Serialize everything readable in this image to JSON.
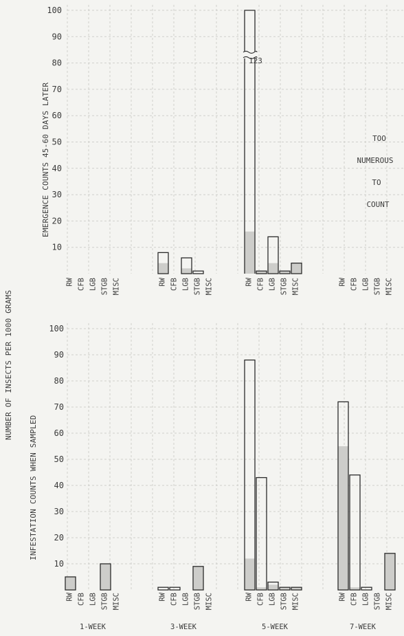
{
  "y_axis_label": "NUMBER OF INSECTS PER 1000 GRAMS",
  "too_numerous": [
    "TOO",
    "NUMEROUS",
    "TO",
    "COUNT"
  ],
  "broken_bar_label": "123",
  "colors": {
    "grid": "#cfcfcc",
    "bar_stroke": "#2b2b2b",
    "shaded": "#cdcdca",
    "background": "#f4f4f1"
  },
  "chart_data": [
    {
      "type": "bar",
      "title": "",
      "ylabel": "EMERGENCE COUNTS 45-60 DAYS LATER",
      "ylim": [
        0,
        100
      ],
      "yticks": [
        10,
        20,
        30,
        40,
        50,
        60,
        70,
        80,
        90,
        100
      ],
      "grid": true,
      "groups": [
        {
          "name": "1-WEEK",
          "categories": [
            "RW",
            "CFB",
            "LGB",
            "STGB",
            "MISC"
          ],
          "total": [
            0,
            0,
            0,
            0,
            0
          ],
          "shaded": [
            0,
            0,
            0,
            0,
            0
          ]
        },
        {
          "name": "3-WEEK",
          "categories": [
            "RW",
            "CFB",
            "LGB",
            "STGB",
            "MISC"
          ],
          "total": [
            8,
            0,
            6,
            1,
            0
          ],
          "shaded": [
            4,
            0,
            2,
            0,
            0
          ]
        },
        {
          "name": "5-WEEK",
          "categories": [
            "RW",
            "CFB",
            "LGB",
            "STGB",
            "MISC"
          ],
          "total": [
            123,
            1,
            14,
            1,
            4
          ],
          "shaded": [
            16,
            1,
            4,
            1,
            4
          ],
          "broken": [
            true,
            false,
            false,
            false,
            false
          ]
        },
        {
          "name": "7-WEEK",
          "categories": [
            "RW",
            "CFB",
            "LGB",
            "STGB",
            "MISC"
          ],
          "total": [
            null,
            null,
            null,
            null,
            null
          ],
          "shaded": [
            null,
            null,
            null,
            null,
            null
          ],
          "note": "TOO NUMEROUS TO COUNT"
        }
      ]
    },
    {
      "type": "bar",
      "title": "",
      "ylabel": "INFESTATION COUNTS WHEN SAMPLED",
      "ylim": [
        0,
        100
      ],
      "yticks": [
        10,
        20,
        30,
        40,
        50,
        60,
        70,
        80,
        90,
        100
      ],
      "grid": true,
      "groups": [
        {
          "name": "1-WEEK",
          "categories": [
            "RW",
            "CFB",
            "LGB",
            "STGB",
            "MISC"
          ],
          "total": [
            5,
            0,
            0,
            10,
            0
          ],
          "shaded": [
            5,
            0,
            0,
            10,
            0
          ]
        },
        {
          "name": "3-WEEK",
          "categories": [
            "RW",
            "CFB",
            "LGB",
            "STGB",
            "MISC"
          ],
          "total": [
            1,
            1,
            0,
            9,
            0
          ],
          "shaded": [
            0,
            0,
            0,
            9,
            0
          ]
        },
        {
          "name": "5-WEEK",
          "categories": [
            "RW",
            "CFB",
            "LGB",
            "STGB",
            "MISC"
          ],
          "total": [
            88,
            43,
            3,
            1,
            1
          ],
          "shaded": [
            12,
            1,
            2,
            1,
            1
          ]
        },
        {
          "name": "7-WEEK",
          "categories": [
            "RW",
            "CFB",
            "LGB",
            "STGB",
            "MISC"
          ],
          "total": [
            72,
            44,
            1,
            0,
            14
          ],
          "shaded": [
            55,
            1,
            0,
            0,
            14
          ]
        }
      ]
    }
  ]
}
